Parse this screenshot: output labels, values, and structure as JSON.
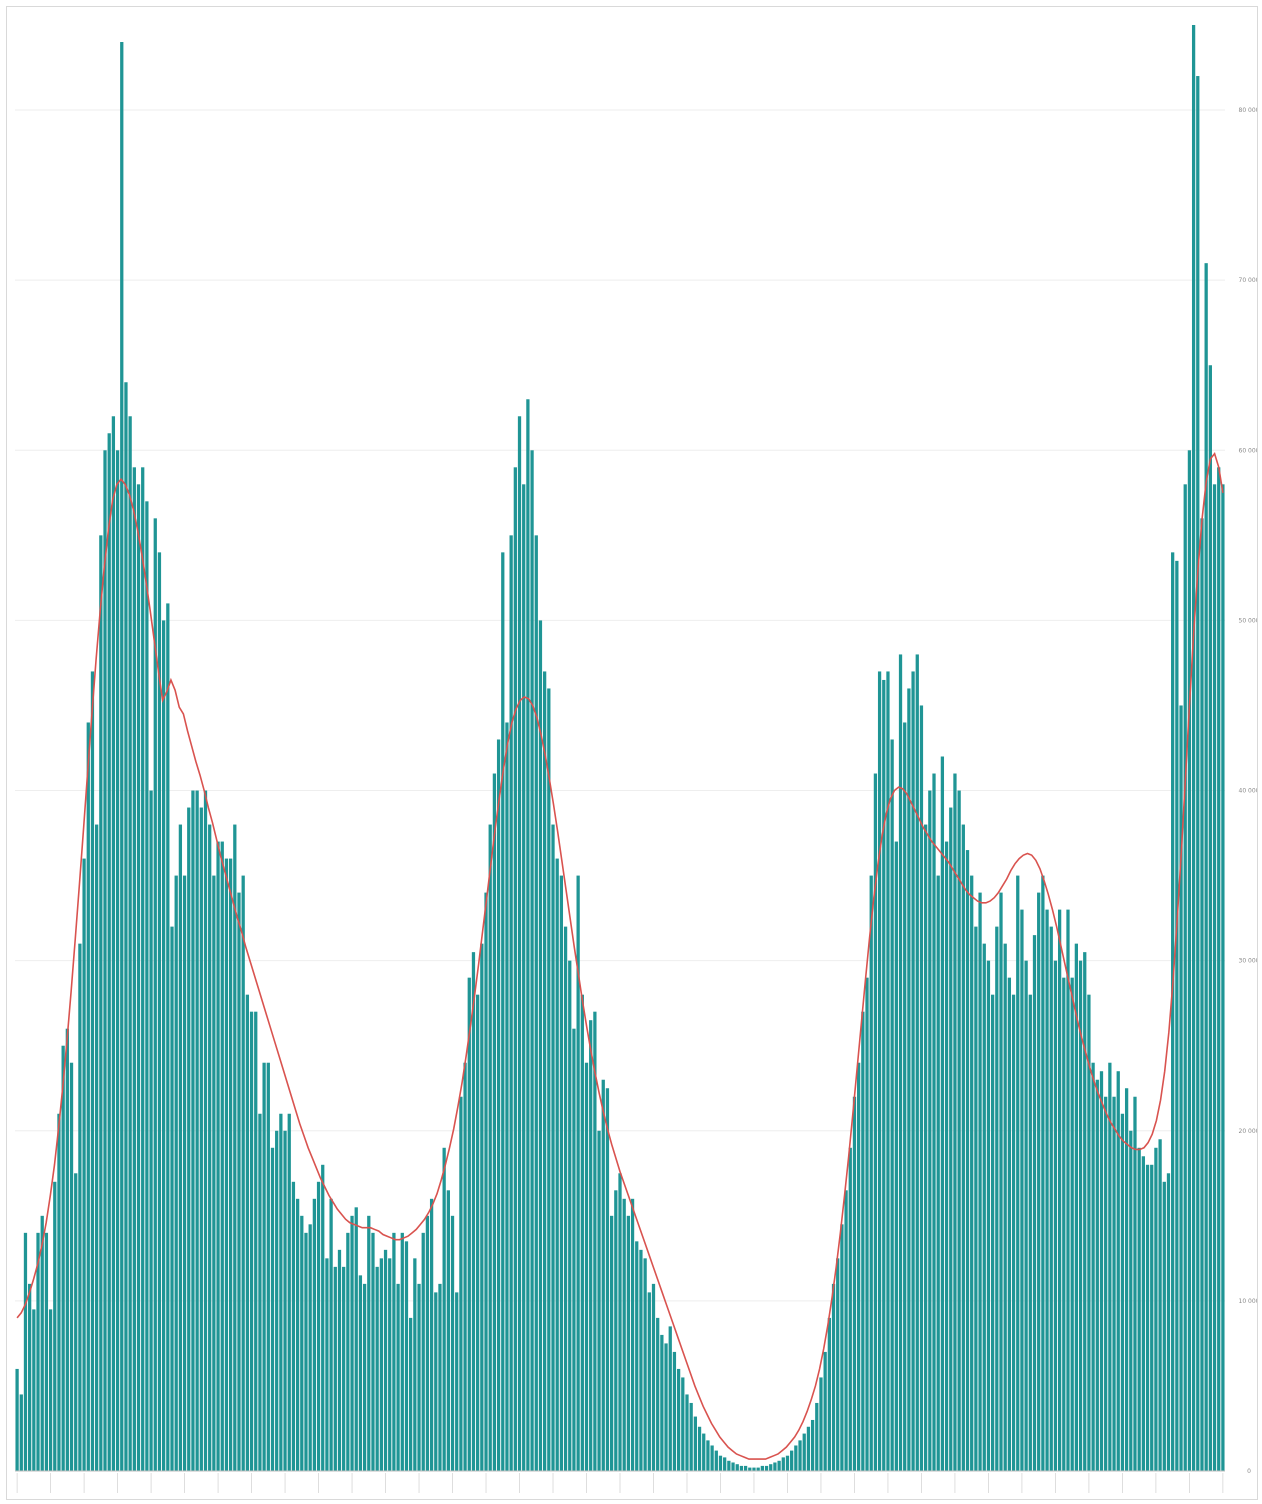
{
  "chart_data": {
    "type": "bar",
    "title": "",
    "xlabel": "",
    "ylabel": "",
    "ylim": [
      0,
      85000
    ],
    "y_ticks": [
      0,
      10000,
      20000,
      30000,
      40000,
      50000,
      60000,
      70000,
      80000
    ],
    "y_tick_labels": [
      "0",
      "10 000",
      "20 000",
      "30 000",
      "40 000",
      "50 000",
      "60 000",
      "70 000",
      "80 000"
    ],
    "y_axis_position": "right",
    "grid": true,
    "legend": "none",
    "bar_color": "#1f9595",
    "line_color": "#d9534f",
    "series": [
      {
        "name": "",
        "type": "bar",
        "values": [
          6000,
          4500,
          14000,
          11000,
          9500,
          14000,
          15000,
          14000,
          9500,
          17000,
          21000,
          25000,
          26000,
          24000,
          17500,
          31000,
          36000,
          44000,
          47000,
          38000,
          55000,
          60000,
          61000,
          62000,
          60000,
          84000,
          64000,
          62000,
          59000,
          58000,
          59000,
          57000,
          40000,
          56000,
          54000,
          50000,
          51000,
          32000,
          35000,
          38000,
          35000,
          39000,
          40000,
          40000,
          39000,
          40000,
          38000,
          35000,
          37000,
          37000,
          36000,
          36000,
          38000,
          34000,
          35000,
          28000,
          27000,
          27000,
          21000,
          24000,
          24000,
          19000,
          20000,
          21000,
          20000,
          21000,
          17000,
          16000,
          15000,
          14000,
          14500,
          16000,
          17000,
          18000,
          12500,
          16000,
          12000,
          13000,
          12000,
          14000,
          15000,
          15500,
          11500,
          11000,
          15000,
          14000,
          12000,
          12500,
          13000,
          12500,
          14000,
          11000,
          14000,
          13500,
          9000,
          12500,
          11000,
          14000,
          15000,
          16000,
          10500,
          11000,
          19000,
          16500,
          15000,
          10500,
          22000,
          24000,
          29000,
          30500,
          28000,
          31000,
          34000,
          38000,
          41000,
          43000,
          54000,
          44000,
          55000,
          59000,
          62000,
          58000,
          63000,
          60000,
          55000,
          50000,
          47000,
          46000,
          38000,
          36000,
          35000,
          32000,
          30000,
          26000,
          35000,
          28000,
          24000,
          26500,
          27000,
          20000,
          23000,
          22500,
          15000,
          16500,
          17500,
          16000,
          15000,
          16000,
          13500,
          13000,
          12500,
          10500,
          11000,
          9000,
          8000,
          7500,
          8500,
          7000,
          6000,
          5500,
          4500,
          4000,
          3200,
          2600,
          2200,
          1800,
          1500,
          1200,
          900,
          800,
          600,
          500,
          400,
          300,
          300,
          200,
          200,
          200,
          300,
          300,
          400,
          500,
          600,
          800,
          900,
          1200,
          1500,
          1800,
          2200,
          2600,
          3000,
          4000,
          5500,
          7000,
          9000,
          11000,
          12500,
          14500,
          16500,
          19000,
          22000,
          24000,
          27000,
          29000,
          35000,
          41000,
          47000,
          46500,
          47000,
          43000,
          37000,
          48000,
          44000,
          46000,
          47000,
          48000,
          45000,
          38000,
          40000,
          41000,
          35000,
          42000,
          37000,
          39000,
          41000,
          40000,
          38000,
          36500,
          35000,
          32000,
          34000,
          31000,
          30000,
          28000,
          32000,
          34000,
          31000,
          29000,
          28000,
          35000,
          33000,
          30000,
          28000,
          31500,
          34000,
          35000,
          33000,
          32000,
          30000,
          33000,
          29000,
          33000,
          29000,
          31000,
          30000,
          30500,
          28000,
          24000,
          23000,
          23500,
          22000,
          24000,
          22000,
          23500,
          21000,
          22500,
          20000,
          22000,
          19000,
          18500,
          18000,
          18000,
          19000,
          19500,
          17000,
          17500,
          54000,
          53500,
          45000,
          58000,
          60000,
          85000,
          82000,
          56000,
          71000,
          65000,
          58000,
          59000,
          58000
        ]
      },
      {
        "name": "",
        "type": "line",
        "values": [
          9000,
          9300,
          9800,
          10500,
          11300,
          12200,
          13300,
          14600,
          16200,
          18000,
          20200,
          22600,
          25300,
          28200,
          31300,
          34500,
          37800,
          41200,
          44500,
          47700,
          50600,
          53200,
          55400,
          57100,
          58000,
          58300,
          58000,
          57400,
          56500,
          55300,
          53900,
          52300,
          50600,
          48800,
          47000,
          45300,
          45800,
          46500,
          45900,
          44900,
          44500,
          43500,
          42600,
          41700,
          40900,
          40000,
          39000,
          38100,
          37100,
          36100,
          35200,
          34300,
          33400,
          32500,
          31700,
          30800,
          30000,
          29200,
          28400,
          27600,
          26800,
          26000,
          25200,
          24400,
          23600,
          22800,
          22000,
          21200,
          20400,
          19700,
          19000,
          18400,
          17800,
          17200,
          16700,
          16200,
          15800,
          15400,
          15100,
          14800,
          14600,
          14500,
          14400,
          14300,
          14300,
          14300,
          14200,
          14100,
          13900,
          13800,
          13700,
          13600,
          13600,
          13700,
          13800,
          14000,
          14200,
          14500,
          14800,
          15200,
          15700,
          16300,
          17100,
          18000,
          19000,
          20100,
          21400,
          22800,
          24400,
          26100,
          27900,
          29800,
          31800,
          33800,
          35800,
          37800,
          39600,
          41300,
          42800,
          44000,
          44800,
          45300,
          45500,
          45400,
          45000,
          44300,
          43300,
          42100,
          40700,
          39200,
          37600,
          35900,
          34200,
          32500,
          30800,
          29200,
          27600,
          26100,
          24700,
          23400,
          22200,
          21100,
          20100,
          19200,
          18400,
          17600,
          16900,
          16200,
          15500,
          14800,
          14100,
          13400,
          12700,
          12000,
          11300,
          10600,
          9900,
          9200,
          8500,
          7800,
          7100,
          6400,
          5700,
          5000,
          4400,
          3800,
          3300,
          2800,
          2400,
          2000,
          1700,
          1400,
          1200,
          1000,
          900,
          800,
          700,
          700,
          700,
          700,
          700,
          800,
          900,
          1000,
          1200,
          1400,
          1700,
          2000,
          2400,
          2900,
          3500,
          4200,
          5000,
          6000,
          7200,
          8600,
          10200,
          12000,
          14000,
          16200,
          18500,
          21000,
          23600,
          26200,
          28800,
          31300,
          33600,
          35600,
          37300,
          38600,
          39500,
          40000,
          40200,
          40100,
          39800,
          39300,
          38800,
          38300,
          37800,
          37400,
          37000,
          36700,
          36400,
          36100,
          35800,
          35400,
          35000,
          34600,
          34200,
          33900,
          33700,
          33500,
          33400,
          33400,
          33500,
          33700,
          34000,
          34400,
          34800,
          35300,
          35700,
          36000,
          36200,
          36300,
          36200,
          35900,
          35400,
          34700,
          33900,
          33000,
          32000,
          30900,
          29800,
          28700,
          27600,
          26500,
          25500,
          24600,
          23700,
          22900,
          22200,
          21600,
          21000,
          20500,
          20100,
          19700,
          19400,
          19200,
          19000,
          18900,
          18900,
          19000,
          19300,
          19800,
          20600,
          21800,
          23500,
          25800,
          28800,
          32400,
          36400,
          40800,
          45200,
          49400,
          53000,
          56000,
          58200,
          59500,
          59800,
          59000,
          57500
        ]
      }
    ],
    "x_labels": [
      "",
      "",
      "",
      "",
      "",
      "",
      "",
      "",
      "",
      "",
      "",
      "",
      "",
      "",
      "",
      "",
      "",
      "",
      "",
      "",
      "",
      "",
      "",
      "",
      "",
      "",
      "",
      "",
      "",
      "",
      "",
      "",
      "",
      "",
      "",
      "",
      "",
      "",
      "",
      "",
      "",
      "",
      "",
      "",
      "",
      "",
      "",
      "",
      "",
      "",
      "",
      "",
      "",
      "",
      "",
      "",
      "",
      "",
      "",
      "",
      "",
      "",
      "",
      "",
      "",
      "",
      "",
      "",
      "",
      "",
      "",
      "",
      "",
      "",
      "",
      "",
      "",
      "",
      "",
      "",
      "",
      "",
      "",
      "",
      "",
      "",
      "",
      "",
      "",
      "",
      "",
      "",
      "",
      "",
      "",
      "",
      "",
      "",
      "",
      "",
      ""
    ]
  }
}
